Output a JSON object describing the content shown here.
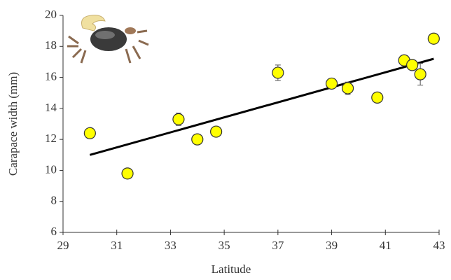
{
  "chart_data": {
    "type": "scatter",
    "xlabel": "Latitude",
    "ylabel": "Carapace width (mm)",
    "x": [
      30.0,
      31.4,
      33.3,
      34.0,
      34.7,
      37.0,
      39.0,
      39.6,
      40.7,
      41.7,
      42.0,
      42.3,
      42.8
    ],
    "values": [
      12.4,
      9.8,
      13.3,
      12.0,
      12.5,
      16.3,
      15.6,
      15.3,
      14.7,
      17.1,
      16.8,
      16.2,
      18.5
    ],
    "errors": [
      0.2,
      0.2,
      0.4,
      0.2,
      0.3,
      0.5,
      0.3,
      0.4,
      0.2,
      0.2,
      0.2,
      0.7,
      0.2
    ],
    "color": "#ffff00",
    "trendline": {
      "x": [
        30.0,
        42.8
      ],
      "values": [
        11.0,
        17.2
      ],
      "color": "#000000"
    },
    "xlim": [
      29,
      43
    ],
    "xticks": [
      29,
      31,
      33,
      35,
      37,
      39,
      41,
      43
    ],
    "ylim": [
      6,
      20
    ],
    "yticks": [
      6,
      8,
      10,
      12,
      14,
      16,
      18,
      20
    ],
    "grid": false
  }
}
